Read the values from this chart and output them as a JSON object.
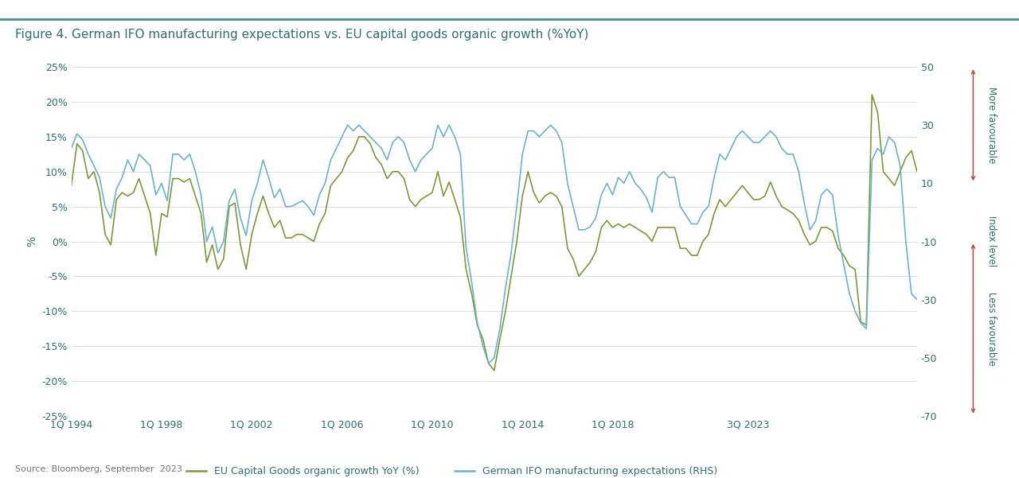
{
  "title": "Figure 4. German IFO manufacturing expectations vs. EU capital goods organic growth (%YoY)",
  "source": "Source: Bloomberg, September  2023",
  "background_color": "#ffffff",
  "title_color": "#2e7070",
  "line1_color": "#7a9a3a",
  "line2_color": "#6ab3c8",
  "grid_color": "#e0e0e0",
  "ylabel_left": "%",
  "ylabel_right": "Index level",
  "ylim_left": [
    -0.25,
    0.25
  ],
  "ylim_right": [
    -70,
    50
  ],
  "yticks_left": [
    -0.25,
    -0.2,
    -0.15,
    -0.1,
    -0.05,
    0.0,
    0.05,
    0.1,
    0.15,
    0.2,
    0.25
  ],
  "ytick_labels_left": [
    "-25%",
    "-20%",
    "-15%",
    "-10%",
    "-5%",
    "0%",
    "5%",
    "10%",
    "15%",
    "20%",
    "25%"
  ],
  "yticks_right": [
    -70,
    -50,
    -30,
    -10,
    10,
    30,
    50
  ],
  "legend1": "EU Capital Goods organic growth YoY (%)",
  "legend2": "German IFO manufacturing expectations (RHS)",
  "annotation_top": "More favourable",
  "annotation_bottom": "Less favourable",
  "arrow_color": "#c0504d",
  "tick_color": "#2e7070",
  "eu_data": [
    0.08,
    0.14,
    0.13,
    0.09,
    0.1,
    0.07,
    0.01,
    -0.005,
    0.06,
    0.07,
    0.065,
    0.07,
    0.09,
    0.065,
    0.04,
    -0.02,
    0.04,
    0.035,
    0.09,
    0.09,
    0.085,
    0.09,
    0.065,
    0.04,
    -0.03,
    -0.005,
    -0.04,
    -0.025,
    0.05,
    0.055,
    -0.005,
    -0.04,
    0.01,
    0.04,
    0.065,
    0.04,
    0.02,
    0.03,
    0.005,
    0.005,
    0.01,
    0.01,
    0.005,
    0.0,
    0.025,
    0.04,
    0.08,
    0.09,
    0.1,
    0.12,
    0.13,
    0.15,
    0.15,
    0.14,
    0.12,
    0.11,
    0.09,
    0.1,
    0.1,
    0.09,
    0.06,
    0.05,
    0.06,
    0.065,
    0.07,
    0.1,
    0.065,
    0.085,
    0.06,
    0.035,
    -0.04,
    -0.075,
    -0.12,
    -0.14,
    -0.175,
    -0.185,
    -0.14,
    -0.1,
    -0.05,
    0.0,
    0.065,
    0.1,
    0.07,
    0.055,
    0.065,
    0.07,
    0.065,
    0.05,
    -0.01,
    -0.025,
    -0.05,
    -0.04,
    -0.03,
    -0.015,
    0.02,
    0.03,
    0.02,
    0.025,
    0.02,
    0.025,
    0.02,
    0.015,
    0.01,
    0.0,
    0.02,
    0.02,
    0.02,
    0.02,
    -0.01,
    -0.01,
    -0.02,
    -0.02,
    0.0,
    0.01,
    0.04,
    0.06,
    0.05,
    0.06,
    0.07,
    0.08,
    0.07,
    0.06,
    0.06,
    0.065,
    0.085,
    0.065,
    0.05,
    0.045,
    0.04,
    0.03,
    0.01,
    -0.005,
    0.0,
    0.02,
    0.02,
    0.015,
    -0.01,
    -0.02,
    -0.035,
    -0.04,
    -0.115,
    -0.12,
    0.21,
    0.185,
    0.1,
    0.09,
    0.08,
    0.1,
    0.12,
    0.13,
    0.1
  ],
  "ifo_data": [
    22,
    27,
    25,
    20,
    16,
    12,
    2,
    -2,
    8,
    12,
    18,
    14,
    20,
    18,
    16,
    6,
    10,
    4,
    20,
    20,
    18,
    20,
    14,
    6,
    -10,
    -5,
    -14,
    -10,
    4,
    8,
    -2,
    -8,
    4,
    10,
    18,
    12,
    5,
    8,
    2,
    2,
    3,
    4,
    2,
    -1,
    6,
    10,
    18,
    22,
    26,
    30,
    28,
    30,
    28,
    26,
    24,
    22,
    18,
    24,
    26,
    24,
    18,
    14,
    18,
    20,
    22,
    30,
    26,
    30,
    26,
    20,
    -12,
    -24,
    -38,
    -46,
    -52,
    -50,
    -40,
    -26,
    -14,
    2,
    20,
    28,
    28,
    26,
    28,
    30,
    28,
    24,
    10,
    2,
    -6,
    -6,
    -5,
    -2,
    6,
    10,
    6,
    12,
    10,
    14,
    10,
    8,
    5,
    0,
    12,
    14,
    12,
    12,
    2,
    -1,
    -4,
    -4,
    0,
    2,
    12,
    20,
    18,
    22,
    26,
    28,
    26,
    24,
    24,
    26,
    28,
    26,
    22,
    20,
    20,
    14,
    3,
    -6,
    -3,
    6,
    8,
    6,
    -8,
    -18,
    -28,
    -34,
    -38,
    -40,
    18,
    22,
    20,
    26,
    24,
    16,
    -10,
    -28,
    -30
  ],
  "xtick_positions": [
    0,
    16,
    32,
    48,
    64,
    80,
    96,
    120,
    136
  ],
  "xtick_labels": [
    "1Q 1994",
    "1Q 1998",
    "1Q 2002",
    "1Q 2006",
    "1Q 2010",
    "1Q 2014",
    "1Q 2018",
    "3Q 2023",
    ""
  ]
}
